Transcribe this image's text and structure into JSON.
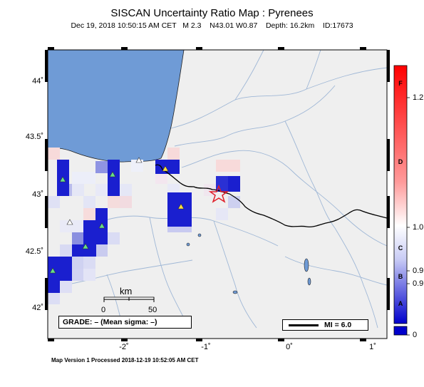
{
  "title": "SISCAN Uncertainty Ratio Map : Pyrenees",
  "subtitle": "Dec 19, 2018 10:50:15 AM CET   M 2.3    N43.01 W0.87    Depth: 16.2km    ID:17673",
  "footer": "Map Version 1 Processed 2018-12-19 10:52:05 AM CET",
  "axes": {
    "lat_ticks": [
      "44˚",
      "43.5˚",
      "43˚",
      "42.5˚",
      "42˚"
    ],
    "lon_ticks": [
      "-2˚",
      "-1˚",
      "0˚",
      "1˚"
    ]
  },
  "colorbar": {
    "ticks": [
      "1.2",
      "1.0",
      "0.9",
      "0.9",
      "0"
    ],
    "grades": [
      "F",
      "D",
      "C",
      "B",
      "A"
    ],
    "top_color": "#ff0000",
    "mid_color": "#ffffff",
    "bottom_color": "#0000cc"
  },
  "scale": {
    "unit": "km",
    "left_label": "0",
    "right_label": "50"
  },
  "grade_box": "GRADE: – (Mean sigma: –)",
  "mi_legend": "MI = 6.0",
  "epicenter": {
    "lat": 43.01,
    "lon": -0.87,
    "symbol": "star-icon"
  },
  "colors": {
    "ocean": "#6f9bd6",
    "land": "#efefef",
    "border": "#000000",
    "rivers": "#9fb7d6"
  }
}
